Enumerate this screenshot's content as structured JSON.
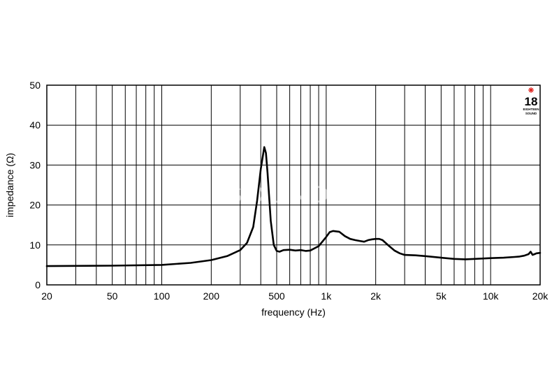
{
  "chart_data": {
    "type": "line",
    "title": "",
    "xlabel": "frequency (Hz)",
    "ylabel": "impedance (Ω)",
    "xscale": "log",
    "xlim": [
      20,
      20000
    ],
    "ylim": [
      0,
      50
    ],
    "grid": true,
    "x_tick_values": [
      20,
      50,
      100,
      200,
      500,
      1000,
      2000,
      5000,
      10000,
      20000
    ],
    "x_tick_labels": [
      "20",
      "50",
      "100",
      "200",
      "500",
      "1k",
      "2k",
      "5k",
      "10k",
      "20k"
    ],
    "y_tick_values": [
      0,
      10,
      20,
      30,
      40,
      50
    ],
    "y_tick_labels": [
      "0",
      "10",
      "20",
      "30",
      "40",
      "50"
    ],
    "x_grid_values": [
      20,
      30,
      40,
      50,
      60,
      70,
      80,
      90,
      100,
      200,
      300,
      400,
      500,
      600,
      700,
      800,
      900,
      1000,
      2000,
      3000,
      4000,
      5000,
      6000,
      7000,
      8000,
      9000,
      10000,
      20000
    ],
    "series": [
      {
        "x": [
          20,
          50,
          100,
          150,
          200,
          250,
          300,
          330,
          360,
          380,
          400,
          420,
          430,
          440,
          450,
          460,
          480,
          500,
          520,
          550,
          600,
          650,
          700,
          750,
          800,
          900,
          1000,
          1050,
          1100,
          1200,
          1300,
          1400,
          1500,
          1600,
          1700,
          1800,
          1900,
          2000,
          2100,
          2200,
          2400,
          2600,
          2800,
          3000,
          3500,
          4000,
          5000,
          6000,
          7000,
          8000,
          10000,
          12000,
          14000,
          15000,
          16000,
          17000,
          17500,
          18000,
          18500,
          19000,
          20000
        ],
        "y": [
          4.7,
          4.8,
          5.0,
          5.5,
          6.2,
          7.2,
          8.7,
          10.5,
          14.5,
          21,
          29,
          34.5,
          33,
          28,
          22,
          16,
          10,
          8.5,
          8.3,
          8.7,
          8.8,
          8.6,
          8.7,
          8.5,
          8.6,
          9.7,
          12.0,
          13.2,
          13.5,
          13.3,
          12.2,
          11.5,
          11.2,
          11.0,
          10.8,
          11.2,
          11.4,
          11.5,
          11.5,
          11.2,
          9.8,
          8.6,
          7.9,
          7.5,
          7.4,
          7.2,
          6.8,
          6.5,
          6.4,
          6.5,
          6.7,
          6.8,
          7.0,
          7.1,
          7.3,
          7.7,
          8.3,
          7.5,
          7.7,
          7.9,
          8.0
        ]
      }
    ]
  },
  "logo": {
    "text": "18",
    "sub1": "EIGHTEEN",
    "sub2": "SOUND",
    "accent_color": "#e0211d"
  },
  "watermark": {
    "text": "SOUND"
  }
}
